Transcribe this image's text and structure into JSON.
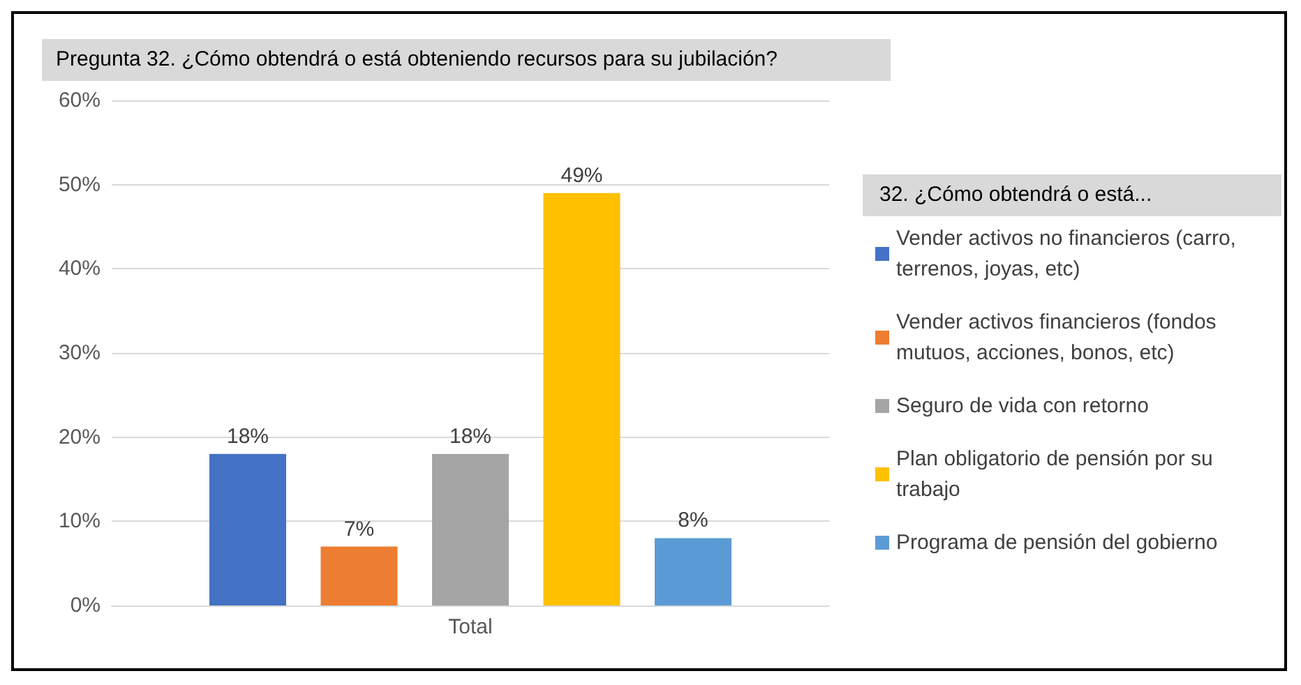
{
  "chart_data": {
    "type": "bar",
    "title": "Pregunta 32. ¿Cómo obtendrá o está obteniendo recursos para su jubilación?",
    "legend_title": "32. ¿Cómo obtendrá o está...",
    "categories": [
      "Total"
    ],
    "series": [
      {
        "name": "Vender activos no financieros (carro, terrenos, joyas, etc)",
        "color": "#4472c4",
        "values": [
          18
        ],
        "value_labels": [
          "18%"
        ]
      },
      {
        "name": "Vender activos financieros (fondos mutuos, acciones, bonos, etc)",
        "color": "#ed7d31",
        "values": [
          7
        ],
        "value_labels": [
          "7%"
        ]
      },
      {
        "name": "Seguro de vida con retorno",
        "color": "#a5a5a5",
        "values": [
          18
        ],
        "value_labels": [
          "18%"
        ]
      },
      {
        "name": "Plan obligatorio de pensión por su trabajo",
        "color": "#ffc000",
        "values": [
          49
        ],
        "value_labels": [
          "49%"
        ]
      },
      {
        "name": "Programa de pensión del gobierno",
        "color": "#5b9bd5",
        "values": [
          8
        ],
        "value_labels": [
          "8%"
        ]
      }
    ],
    "ylim": [
      0,
      60
    ],
    "yticks": [
      {
        "value": 0,
        "label": "0%"
      },
      {
        "value": 10,
        "label": "10%"
      },
      {
        "value": 20,
        "label": "20%"
      },
      {
        "value": 30,
        "label": "30%"
      },
      {
        "value": 40,
        "label": "40%"
      },
      {
        "value": 50,
        "label": "50%"
      },
      {
        "value": 60,
        "label": "60%"
      }
    ],
    "grid": "y",
    "legend": "right"
  }
}
